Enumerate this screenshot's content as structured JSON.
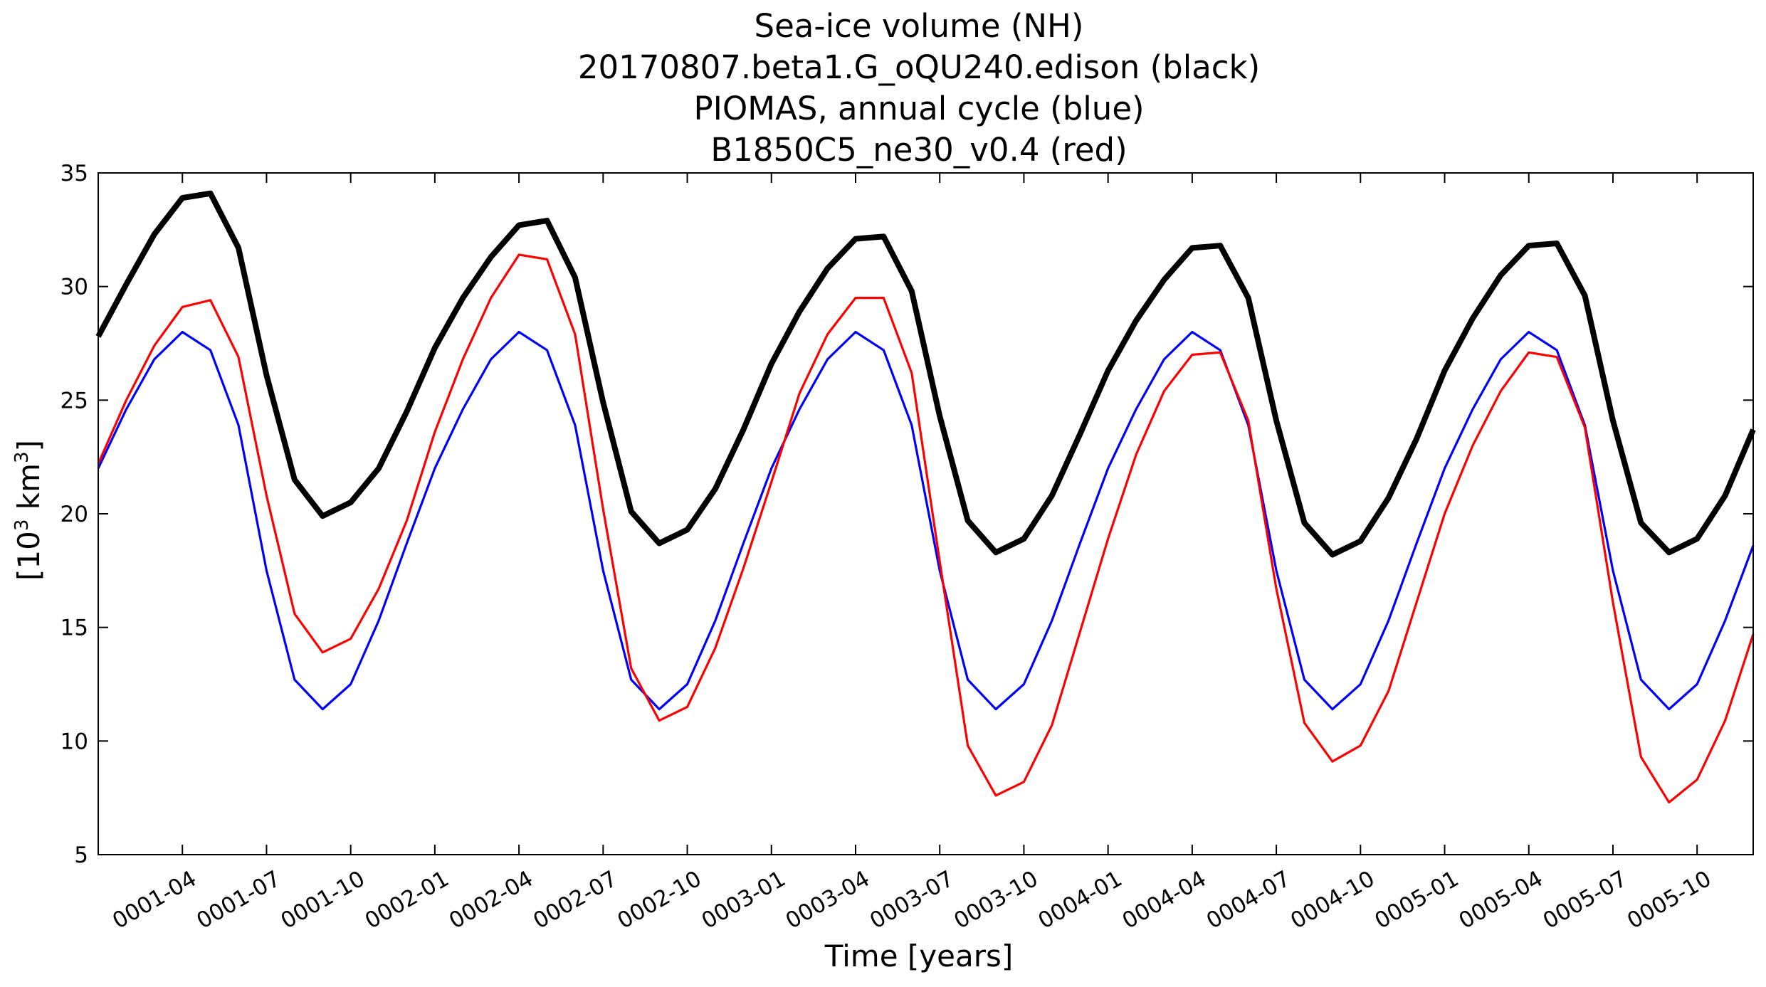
{
  "chart_data": {
    "type": "line",
    "title_lines": [
      "Sea-ice volume (NH)",
      "20170807.beta1.G_oQU240.edison (black)",
      "PIOMAS, annual cycle (blue)",
      "B1850C5_ne30_v0.4 (red)"
    ],
    "xlabel": "Time [years]",
    "ylabel_main": "[10",
    "ylabel_sup1": "3",
    "ylabel_mid": " km",
    "ylabel_sup2": "3",
    "ylabel_end": "]",
    "ylim": [
      5,
      35
    ],
    "yticks": [
      5,
      10,
      15,
      20,
      25,
      30,
      35
    ],
    "x_start": "0001-01",
    "x_end": "0005-12",
    "xticks": [
      {
        "month_index": 3,
        "label": "0001-04"
      },
      {
        "month_index": 6,
        "label": "0001-07"
      },
      {
        "month_index": 9,
        "label": "0001-10"
      },
      {
        "month_index": 12,
        "label": "0002-01"
      },
      {
        "month_index": 15,
        "label": "0002-04"
      },
      {
        "month_index": 18,
        "label": "0002-07"
      },
      {
        "month_index": 21,
        "label": "0002-10"
      },
      {
        "month_index": 24,
        "label": "0003-01"
      },
      {
        "month_index": 27,
        "label": "0003-04"
      },
      {
        "month_index": 30,
        "label": "0003-07"
      },
      {
        "month_index": 33,
        "label": "0003-10"
      },
      {
        "month_index": 36,
        "label": "0004-01"
      },
      {
        "month_index": 39,
        "label": "0004-04"
      },
      {
        "month_index": 42,
        "label": "0004-07"
      },
      {
        "month_index": 45,
        "label": "0004-10"
      },
      {
        "month_index": 48,
        "label": "0005-01"
      },
      {
        "month_index": 51,
        "label": "0005-04"
      },
      {
        "month_index": 54,
        "label": "0005-07"
      },
      {
        "month_index": 57,
        "label": "0005-10"
      }
    ],
    "series": [
      {
        "color": "#000000",
        "values": [
          27.8,
          30.1,
          32.3,
          33.9,
          34.1,
          31.7,
          26.1,
          21.5,
          19.9,
          20.5,
          22.0,
          24.5,
          27.3,
          29.5,
          31.3,
          32.7,
          32.9,
          30.4,
          24.9,
          20.1,
          18.7,
          19.3,
          21.1,
          23.7,
          26.6,
          28.9,
          30.8,
          32.1,
          32.2,
          29.8,
          24.3,
          19.7,
          18.3,
          18.9,
          20.8,
          23.5,
          26.3,
          28.5,
          30.3,
          31.7,
          31.8,
          29.5,
          24.1,
          19.6,
          18.2,
          18.8,
          20.7,
          23.3,
          26.3,
          28.6,
          30.5,
          31.8,
          31.9,
          29.6,
          24.1,
          19.6,
          18.3,
          18.9,
          20.8,
          23.7
        ]
      },
      {
        "color": "#0000ff",
        "values": [
          22.0,
          24.6,
          26.8,
          28.0,
          27.2,
          23.9,
          17.5,
          12.7,
          11.4,
          12.5,
          15.3,
          18.7,
          22.0,
          24.6,
          26.8,
          28.0,
          27.2,
          23.9,
          17.5,
          12.7,
          11.4,
          12.5,
          15.3,
          18.7,
          22.0,
          24.6,
          26.8,
          28.0,
          27.2,
          23.9,
          17.5,
          12.7,
          11.4,
          12.5,
          15.3,
          18.7,
          22.0,
          24.6,
          26.8,
          28.0,
          27.2,
          23.9,
          17.5,
          12.7,
          11.4,
          12.5,
          15.3,
          18.7,
          22.0,
          24.6,
          26.8,
          28.0,
          27.2,
          23.9,
          17.5,
          12.7,
          11.4,
          12.5,
          15.3,
          18.6
        ]
      },
      {
        "color": "#ff0000",
        "values": [
          22.2,
          25.0,
          27.4,
          29.1,
          29.4,
          26.9,
          20.8,
          15.6,
          13.9,
          14.5,
          16.7,
          19.7,
          23.6,
          26.8,
          29.5,
          31.4,
          31.2,
          27.9,
          20.2,
          13.2,
          10.9,
          11.5,
          14.1,
          17.6,
          21.4,
          25.3,
          27.9,
          29.5,
          29.5,
          26.2,
          17.9,
          9.8,
          7.6,
          8.2,
          10.7,
          14.8,
          18.9,
          22.6,
          25.4,
          27.0,
          27.1,
          24.1,
          16.7,
          10.8,
          9.1,
          9.8,
          12.2,
          16.1,
          20.0,
          23.0,
          25.4,
          27.1,
          26.9,
          23.8,
          16.1,
          9.3,
          7.3,
          8.3,
          10.9,
          14.7
        ]
      }
    ]
  }
}
